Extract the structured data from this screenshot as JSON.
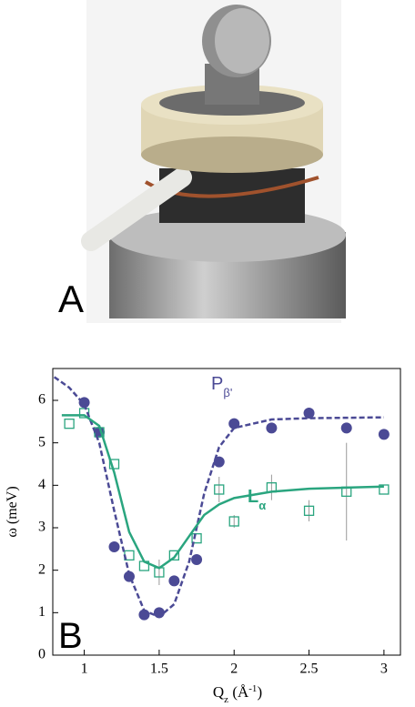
{
  "photo": {
    "label": "A"
  },
  "chart_data": {
    "type": "scatter",
    "panel_label": "B",
    "ylabel": "ω (meV)",
    "xlabel": [
      {
        "text": "Q"
      },
      {
        "text": "z",
        "sub": true
      },
      {
        "text": " (Å"
      },
      {
        "text": "-1",
        "sup": true
      },
      {
        "text": ")"
      }
    ],
    "xlim": [
      0.79,
      3.11
    ],
    "ylim": [
      0,
      6.75
    ],
    "xticks": [
      1,
      1.5,
      2,
      2.5,
      3
    ],
    "yticks": [
      0,
      1,
      2,
      3,
      4,
      5,
      6
    ],
    "annotations": [
      {
        "text": "P",
        "sub": "β'",
        "color": "#4b4a95"
      },
      {
        "text": "L",
        "sub": "α",
        "color": "#2aa57f"
      }
    ],
    "series": [
      {
        "marker": "circle",
        "color": "#4b4a95",
        "x": [
          1.0,
          1.1,
          1.2,
          1.3,
          1.4,
          1.5,
          1.6,
          1.75,
          1.9,
          2.0,
          2.25,
          2.5,
          2.75,
          3.0
        ],
        "values": [
          5.95,
          5.25,
          2.55,
          1.85,
          0.95,
          1.0,
          1.75,
          2.25,
          4.55,
          5.45,
          5.35,
          5.7,
          5.35,
          5.2
        ]
      },
      {
        "marker": "square",
        "color": "#2aa57f",
        "x": [
          0.9,
          1.0,
          1.1,
          1.2,
          1.3,
          1.4,
          1.5,
          1.6,
          1.75,
          1.9,
          2.0,
          2.25,
          2.5,
          2.75,
          3.0
        ],
        "values": [
          5.45,
          5.7,
          5.25,
          4.5,
          2.35,
          2.1,
          1.95,
          2.35,
          2.75,
          3.9,
          3.15,
          3.95,
          3.4,
          3.85,
          3.9
        ],
        "errors": [
          null,
          null,
          null,
          null,
          null,
          null,
          0.3,
          null,
          null,
          0.3,
          0.15,
          0.3,
          0.25,
          1.15,
          null
        ]
      },
      {
        "marker": "line",
        "color": "#4b4a95",
        "x": [
          0.8,
          0.9,
          1.0,
          1.1,
          1.2,
          1.3,
          1.4,
          1.5,
          1.6,
          1.7,
          1.8,
          1.9,
          2.0,
          2.25,
          2.5,
          3.0
        ],
        "values": [
          6.55,
          6.3,
          5.9,
          5.0,
          3.4,
          1.9,
          1.05,
          0.9,
          1.2,
          2.2,
          3.8,
          4.9,
          5.35,
          5.55,
          5.58,
          5.6
        ]
      },
      {
        "marker": "line",
        "color": "#2aa57f",
        "x": [
          0.85,
          1.0,
          1.1,
          1.2,
          1.3,
          1.4,
          1.5,
          1.6,
          1.7,
          1.8,
          1.9,
          2.0,
          2.25,
          2.5,
          3.0
        ],
        "values": [
          5.65,
          5.65,
          5.4,
          4.3,
          2.9,
          2.2,
          2.05,
          2.3,
          2.8,
          3.3,
          3.55,
          3.7,
          3.85,
          3.92,
          3.97
        ]
      }
    ]
  }
}
